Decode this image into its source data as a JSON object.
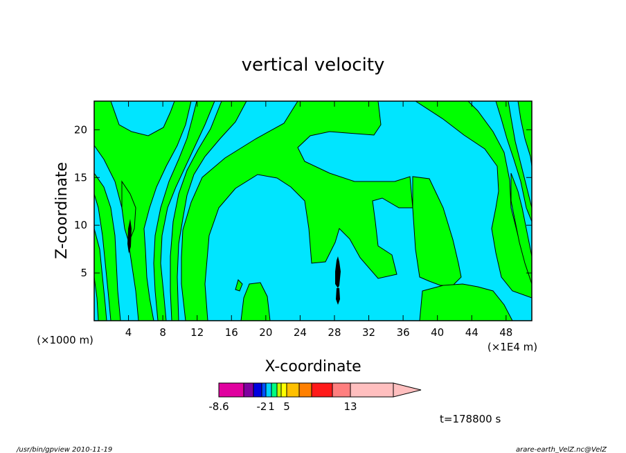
{
  "chart_data": {
    "type": "heatmap",
    "title": "vertical velocity",
    "xlabel": "X-coordinate",
    "ylabel": "Z-coordinate",
    "x_unit": "(×1E4 m)",
    "y_unit": "(×1000 m)",
    "x_ticks": [
      4,
      8,
      12,
      16,
      20,
      24,
      28,
      32,
      36,
      40,
      44,
      48
    ],
    "y_ticks": [
      5,
      10,
      15,
      20
    ],
    "xlim": [
      0,
      51
    ],
    "ylim": [
      0,
      23
    ],
    "field_colors": {
      "negative": "#00e5ff",
      "positive": "#00ff00",
      "strong_updraft": "#000000"
    },
    "colorbar": {
      "tick_labels": [
        "-8.6",
        "-2",
        "1",
        "5",
        "13"
      ],
      "tick_level_index": [
        0,
        3,
        5,
        8,
        12
      ],
      "colors": [
        "#e0009f",
        "#7f009f",
        "#0000e0",
        "#0050ff",
        "#00d0ff",
        "#00ff80",
        "#bfff00",
        "#ffff00",
        "#ffc000",
        "#ff8000",
        "#ff1a1a",
        "#ff7f7f",
        "#ffbfbf"
      ],
      "extends": "right"
    },
    "time_label": "t=178800 s"
  },
  "footer": {
    "left": "/usr/bin/gpview   2010-11-19",
    "right": "arare-earth_VelZ.nc@VelZ"
  }
}
